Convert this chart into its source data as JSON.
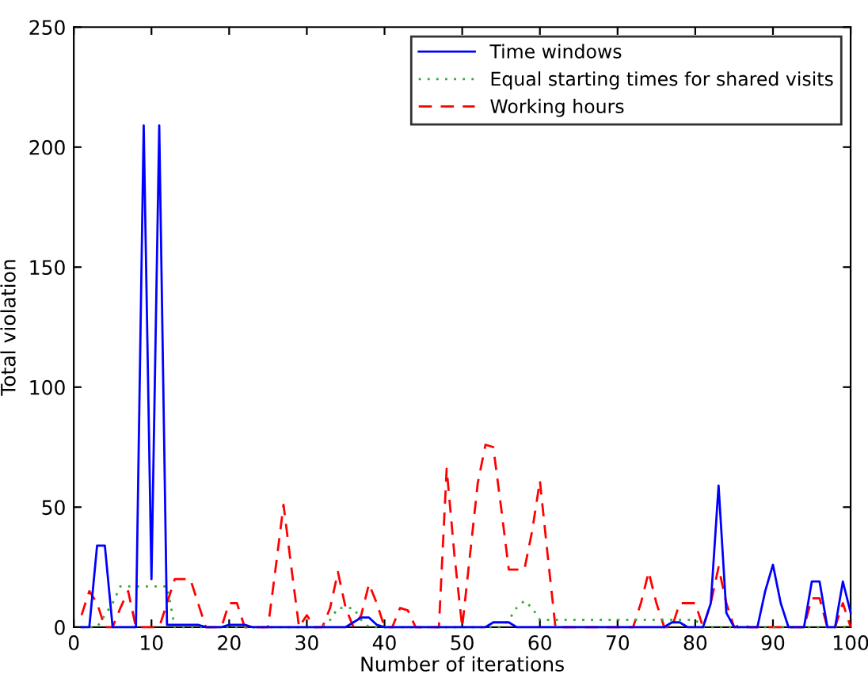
{
  "chart_data": {
    "type": "line",
    "xlabel": "Number of iterations",
    "ylabel": "Total violation",
    "x": [
      1,
      2,
      3,
      4,
      5,
      6,
      7,
      8,
      9,
      10,
      11,
      12,
      13,
      14,
      15,
      16,
      17,
      18,
      19,
      20,
      21,
      22,
      23,
      24,
      25,
      26,
      27,
      28,
      29,
      30,
      31,
      32,
      33,
      34,
      35,
      36,
      37,
      38,
      39,
      40,
      41,
      42,
      43,
      44,
      45,
      46,
      47,
      48,
      49,
      50,
      51,
      52,
      53,
      54,
      55,
      56,
      57,
      58,
      59,
      60,
      61,
      62,
      63,
      64,
      65,
      66,
      67,
      68,
      69,
      70,
      71,
      72,
      73,
      74,
      75,
      76,
      77,
      78,
      79,
      80,
      81,
      82,
      83,
      84,
      85,
      86,
      87,
      88,
      89,
      90,
      91,
      92,
      93,
      94,
      95,
      96,
      97,
      98,
      99,
      100
    ],
    "series": [
      {
        "name": "Time windows",
        "color": "#0000ff",
        "line_style": "solid",
        "values": [
          0,
          0,
          34,
          34,
          0,
          0,
          0,
          0,
          209,
          20,
          209,
          1,
          1,
          1,
          1,
          1,
          0,
          0,
          0,
          1,
          1,
          1,
          0,
          0,
          0,
          0,
          0,
          0,
          0,
          0,
          0,
          0,
          0,
          0,
          0,
          2,
          4,
          4,
          1,
          0,
          0,
          0,
          0,
          0,
          0,
          0,
          0,
          0,
          0,
          0,
          0,
          0,
          0,
          2,
          2,
          2,
          0,
          0,
          0,
          0,
          0,
          0,
          0,
          0,
          0,
          0,
          0,
          0,
          0,
          0,
          0,
          0,
          0,
          0,
          0,
          0,
          2,
          2,
          0,
          0,
          0,
          10,
          59,
          6,
          0,
          0,
          0,
          0,
          15,
          26,
          10,
          0,
          0,
          0,
          19,
          19,
          0,
          0,
          19,
          6
        ]
      },
      {
        "name": "Equal starting times for shared visits",
        "color": "#33aa33",
        "line_style": "dotted",
        "values": [
          0,
          0,
          0,
          5,
          10,
          17,
          17,
          17,
          17,
          17,
          17,
          17,
          0,
          0,
          0,
          0,
          0,
          0,
          0,
          0,
          0,
          0,
          0,
          0,
          0,
          0,
          0,
          0,
          0,
          0,
          0,
          0,
          3,
          8,
          8,
          8,
          3,
          0,
          0,
          0,
          0,
          0,
          0,
          0,
          0,
          0,
          0,
          0,
          0,
          0,
          0,
          0,
          0,
          0,
          0,
          3,
          8,
          11,
          8,
          3,
          3,
          3,
          3,
          3,
          3,
          3,
          3,
          3,
          3,
          3,
          3,
          3,
          3,
          3,
          3,
          3,
          3,
          3,
          3,
          3,
          0,
          0,
          0,
          0,
          0,
          0,
          0,
          0,
          0,
          0,
          0,
          0,
          0,
          0,
          0,
          0,
          0,
          0,
          0,
          0
        ]
      },
      {
        "name": "Working hours",
        "color": "#ff0000",
        "line_style": "dashed",
        "values": [
          5,
          15,
          10,
          0,
          0,
          8,
          15,
          0,
          0,
          0,
          0,
          10,
          20,
          20,
          20,
          10,
          0,
          0,
          0,
          10,
          10,
          0,
          0,
          0,
          0,
          25,
          51,
          25,
          0,
          5,
          0,
          0,
          8,
          23,
          8,
          0,
          5,
          18,
          10,
          0,
          0,
          8,
          7,
          0,
          0,
          0,
          0,
          66,
          30,
          0,
          30,
          60,
          76,
          75,
          50,
          24,
          24,
          24,
          40,
          61,
          30,
          0,
          0,
          0,
          0,
          0,
          0,
          0,
          0,
          0,
          0,
          0,
          10,
          23,
          10,
          0,
          0,
          10,
          10,
          10,
          0,
          10,
          25,
          10,
          0,
          1,
          0,
          0,
          0,
          0,
          0,
          0,
          0,
          0,
          12,
          12,
          0,
          0,
          10,
          0
        ]
      }
    ],
    "xlim": [
      0,
      100
    ],
    "xticks": [
      0,
      10,
      20,
      30,
      40,
      50,
      60,
      70,
      80,
      90,
      100
    ],
    "ylim": [
      0,
      250
    ],
    "yticks": [
      0,
      50,
      100,
      150,
      200,
      250
    ],
    "grid": false,
    "legend": "top right",
    "marker": "none"
  }
}
